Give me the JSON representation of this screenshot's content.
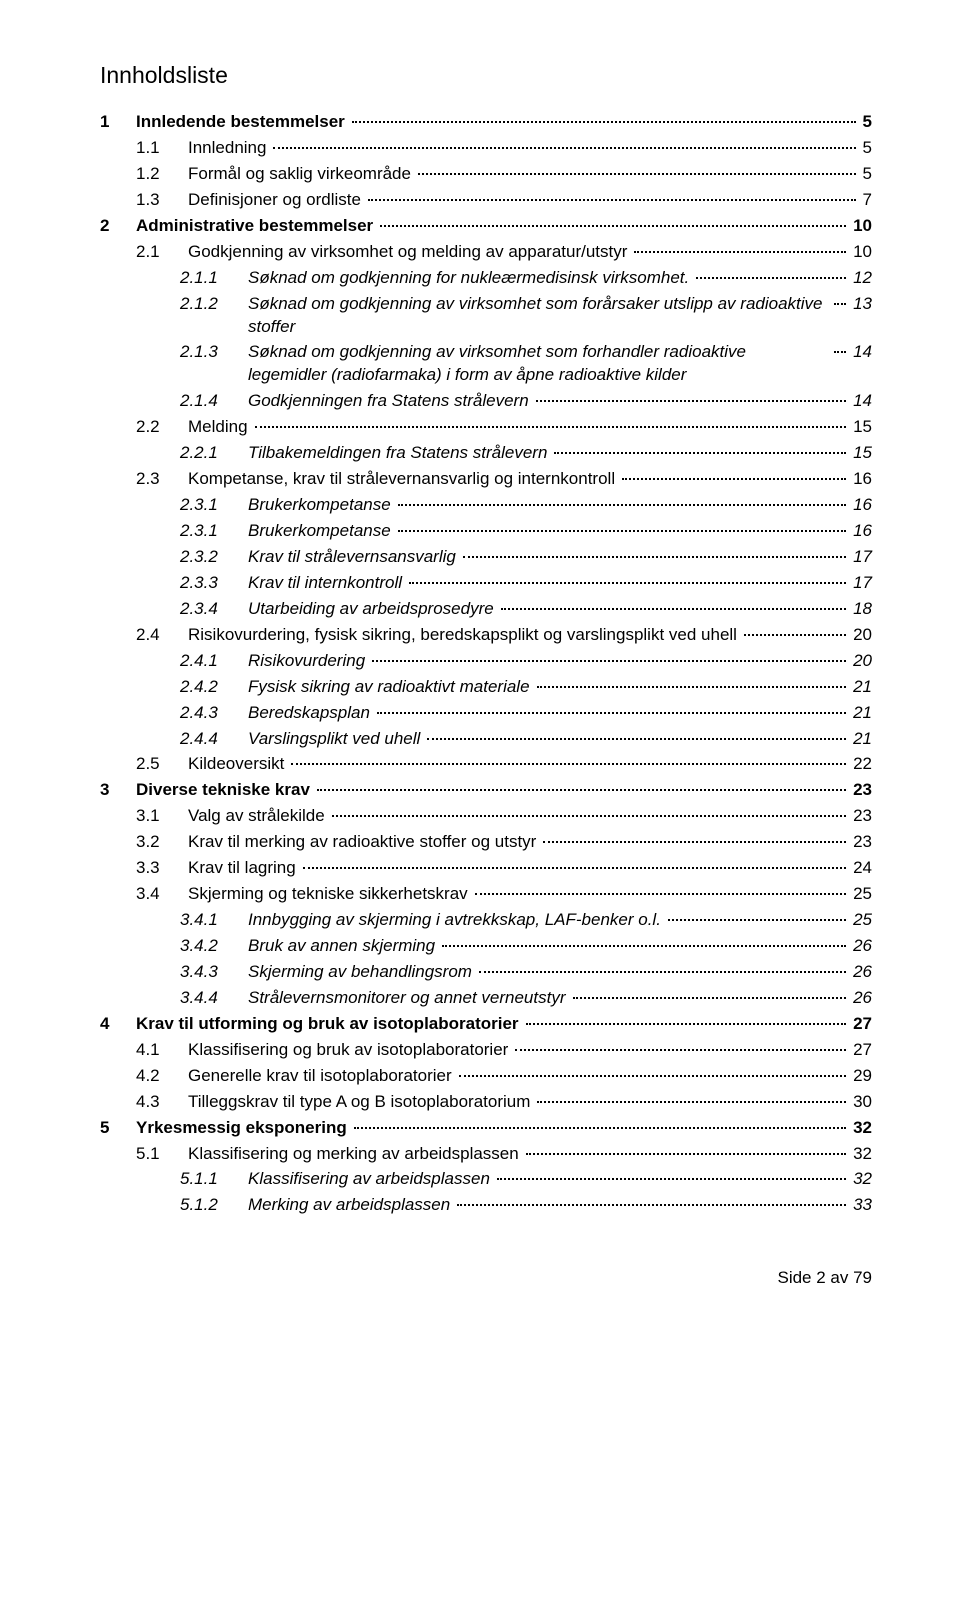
{
  "title": "Innholdsliste",
  "footer": "Side 2 av 79",
  "colors": {
    "background": "#ffffff",
    "text": "#000000",
    "dots": "#000000"
  },
  "typography": {
    "body_font_family": "Trebuchet MS, Lucida Sans, Verdana, sans-serif",
    "body_font_size_pt": 12,
    "title_font_size_pt": 16,
    "level1_weight": "bold",
    "level3_style": "italic"
  },
  "entries": [
    {
      "level": 1,
      "num": "1",
      "label": "Innledende bestemmelser",
      "page": "5"
    },
    {
      "level": 2,
      "num": "1.1",
      "label": "Innledning",
      "page": "5"
    },
    {
      "level": 2,
      "num": "1.2",
      "label": "Formål og saklig virkeområde",
      "page": "5"
    },
    {
      "level": 2,
      "num": "1.3",
      "label": "Definisjoner og ordliste",
      "page": "7"
    },
    {
      "level": 1,
      "num": "2",
      "label": "Administrative bestemmelser",
      "page": "10"
    },
    {
      "level": 2,
      "num": "2.1",
      "label": "Godkjenning av virksomhet og melding av apparatur/utstyr",
      "page": "10"
    },
    {
      "level": 3,
      "num": "2.1.1",
      "label": "Søknad om godkjenning for nukleærmedisinsk virksomhet.",
      "page": "12"
    },
    {
      "level": 3,
      "num": "2.1.2",
      "label": "Søknad om godkjenning av virksomhet som forårsaker utslipp av radioaktive stoffer",
      "page": "13"
    },
    {
      "level": 3,
      "num": "2.1.3",
      "label": "Søknad om godkjenning av virksomhet som forhandler radioaktive legemidler (radiofarmaka) i form av åpne radioaktive kilder",
      "page": "14"
    },
    {
      "level": 3,
      "num": "2.1.4",
      "label": "Godkjenningen fra Statens strålevern",
      "page": "14"
    },
    {
      "level": 2,
      "num": "2.2",
      "label": "Melding",
      "page": "15"
    },
    {
      "level": 3,
      "num": "2.2.1",
      "label": "Tilbakemeldingen fra Statens strålevern",
      "page": "15"
    },
    {
      "level": 2,
      "num": "2.3",
      "label": "Kompetanse, krav til strålevernansvarlig og internkontroll",
      "page": "16"
    },
    {
      "level": 3,
      "num": "2.3.1",
      "label": "Brukerkompetanse",
      "page": "16"
    },
    {
      "level": 3,
      "num": "2.3.1",
      "label": "Brukerkompetanse",
      "page": "16"
    },
    {
      "level": 3,
      "num": "2.3.2",
      "label": "Krav til strålevernsansvarlig",
      "page": "17"
    },
    {
      "level": 3,
      "num": "2.3.3",
      "label": "Krav til internkontroll",
      "page": "17"
    },
    {
      "level": 3,
      "num": "2.3.4",
      "label": "Utarbeiding av arbeidsprosedyre",
      "page": "18"
    },
    {
      "level": 2,
      "num": "2.4",
      "label": "Risikovurdering, fysisk sikring, beredskapsplikt og varslingsplikt ved uhell",
      "page": "20"
    },
    {
      "level": 3,
      "num": "2.4.1",
      "label": "Risikovurdering",
      "page": "20"
    },
    {
      "level": 3,
      "num": "2.4.2",
      "label": "Fysisk sikring av radioaktivt materiale",
      "page": "21"
    },
    {
      "level": 3,
      "num": "2.4.3",
      "label": "Beredskapsplan",
      "page": "21"
    },
    {
      "level": 3,
      "num": "2.4.4",
      "label": "Varslingsplikt ved uhell",
      "page": "21"
    },
    {
      "level": 2,
      "num": "2.5",
      "label": "Kildeoversikt",
      "page": "22"
    },
    {
      "level": 1,
      "num": "3",
      "label": "Diverse tekniske krav",
      "page": "23"
    },
    {
      "level": 2,
      "num": "3.1",
      "label": "Valg av strålekilde",
      "page": "23"
    },
    {
      "level": 2,
      "num": "3.2",
      "label": "Krav til merking av radioaktive stoffer og utstyr",
      "page": "23"
    },
    {
      "level": 2,
      "num": "3.3",
      "label": "Krav til lagring",
      "page": "24"
    },
    {
      "level": 2,
      "num": "3.4",
      "label": "Skjerming og tekniske sikkerhetskrav",
      "page": "25"
    },
    {
      "level": 3,
      "num": "3.4.1",
      "label": "Innbygging av skjerming i avtrekkskap, LAF-benker o.l.",
      "page": "25"
    },
    {
      "level": 3,
      "num": "3.4.2",
      "label": "Bruk av annen skjerming",
      "page": "26"
    },
    {
      "level": 3,
      "num": "3.4.3",
      "label": "Skjerming av behandlingsrom",
      "page": "26"
    },
    {
      "level": 3,
      "num": "3.4.4",
      "label": "Strålevernsmonitorer og annet verneutstyr",
      "page": "26"
    },
    {
      "level": 1,
      "num": "4",
      "label": "Krav til utforming og bruk av isotoplaboratorier",
      "page": "27"
    },
    {
      "level": 2,
      "num": "4.1",
      "label": "Klassifisering og bruk av isotoplaboratorier",
      "page": "27"
    },
    {
      "level": 2,
      "num": "4.2",
      "label": "Generelle krav til isotoplaboratorier",
      "page": "29"
    },
    {
      "level": 2,
      "num": "4.3",
      "label": "Tilleggskrav til type A og B isotoplaboratorium",
      "page": "30"
    },
    {
      "level": 1,
      "num": "5",
      "label": "Yrkesmessig eksponering",
      "page": "32"
    },
    {
      "level": 2,
      "num": "5.1",
      "label": "Klassifisering og merking av arbeidsplassen",
      "page": "32"
    },
    {
      "level": 3,
      "num": "5.1.1",
      "label": "Klassifisering av arbeidsplassen",
      "page": "32"
    },
    {
      "level": 3,
      "num": "5.1.2",
      "label": "Merking av arbeidsplassen",
      "page": "33"
    }
  ]
}
